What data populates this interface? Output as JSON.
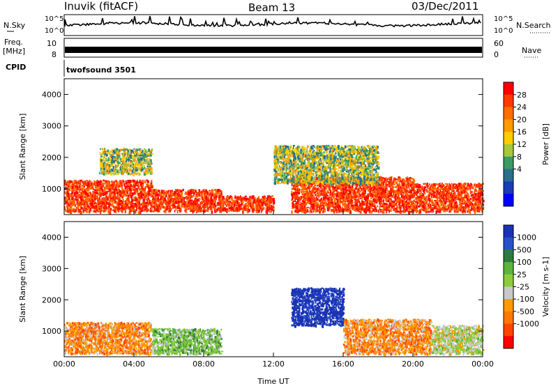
{
  "header": {
    "station": "Inuvik (fitACF)",
    "beam": "Beam 13",
    "date": "03/Dec/2011"
  },
  "strip_panels": {
    "nsky_label": "N.Sky",
    "nsky_ticks": [
      "10^5",
      "10^0"
    ],
    "nsearch_label": "N.Search",
    "nsearch_ticks": [
      "10^5",
      "10^0"
    ],
    "freq_label": "Freq.",
    "freq_unit": "[MHz]",
    "freq_ticks": [
      "10",
      "8"
    ],
    "nave_label": "Nave",
    "nave_ticks": [
      "60",
      "0"
    ],
    "cpid_label": "CPID",
    "cpid_value": "twofsound  3501"
  },
  "chart_data": [
    {
      "type": "heatmap",
      "name": "power",
      "ylabel": "Slant Range [km]",
      "xlabel": "",
      "ylim": [
        180,
        4500
      ],
      "yticks": [
        1000,
        2000,
        3000,
        4000
      ],
      "xticks": [
        "00:00",
        "04:00",
        "08:00",
        "12:00",
        "16:00",
        "20:00",
        "00:00"
      ],
      "xlim_hours": [
        0,
        24
      ],
      "colorbar": {
        "label": "Power [dB]",
        "ticks": [
          "28",
          "24",
          "20",
          "16",
          "12",
          "8",
          "4"
        ],
        "colors": [
          "#ff0000",
          "#ff3a00",
          "#ff6e00",
          "#ff9a00",
          "#ffcc00",
          "#a5c83c",
          "#3c9a64",
          "#2a6e8c",
          "#1a3cb4",
          "#0000ff"
        ]
      },
      "echo_regions_approx": [
        {
          "t": [
            0,
            5
          ],
          "range_km": [
            300,
            1300
          ],
          "level": "high"
        },
        {
          "t": [
            5,
            9
          ],
          "range_km": [
            300,
            1000
          ],
          "level": "high"
        },
        {
          "t": [
            9,
            12
          ],
          "range_km": [
            300,
            800
          ],
          "level": "high"
        },
        {
          "t": [
            13,
            20
          ],
          "range_km": [
            300,
            1400
          ],
          "level": "high"
        },
        {
          "t": [
            20,
            24
          ],
          "range_km": [
            300,
            1200
          ],
          "level": "high"
        },
        {
          "t": [
            2,
            5
          ],
          "range_km": [
            1500,
            2300
          ],
          "level": "medium"
        },
        {
          "t": [
            12,
            18
          ],
          "range_km": [
            1200,
            2400
          ],
          "level": "medium"
        }
      ]
    },
    {
      "type": "heatmap",
      "name": "velocity",
      "ylabel": "Slant Range [km]",
      "xlabel": "Time UT",
      "ylim": [
        180,
        4500
      ],
      "yticks": [
        1000,
        2000,
        3000,
        4000
      ],
      "xticks": [
        "00:00",
        "04:00",
        "08:00",
        "12:00",
        "16:00",
        "20:00",
        "00:00"
      ],
      "xlim_hours": [
        0,
        24
      ],
      "colorbar": {
        "label": "Velocity [m s-1]",
        "ticks": [
          "1000",
          "500",
          "100",
          "25",
          "-25",
          "-100",
          "-500",
          "-1000"
        ],
        "colors": [
          "#1a32b4",
          "#2850c8",
          "#2e7a3c",
          "#5cb43c",
          "#8ccc3c",
          "#c8c8c8",
          "#ff9a00",
          "#ff7800",
          "#ff4600",
          "#ff0000"
        ]
      },
      "echo_regions_approx": [
        {
          "t": [
            0,
            5
          ],
          "range_km": [
            300,
            1300
          ],
          "velocity": "-100"
        },
        {
          "t": [
            5,
            9
          ],
          "range_km": [
            300,
            1100
          ],
          "velocity": "100"
        },
        {
          "t": [
            13,
            16
          ],
          "range_km": [
            1200,
            2400
          ],
          "velocity": "1000"
        },
        {
          "t": [
            16,
            21
          ],
          "range_km": [
            300,
            1400
          ],
          "velocity": "-100"
        },
        {
          "t": [
            21,
            24
          ],
          "range_km": [
            300,
            1200
          ],
          "velocity": "-25"
        }
      ]
    }
  ]
}
